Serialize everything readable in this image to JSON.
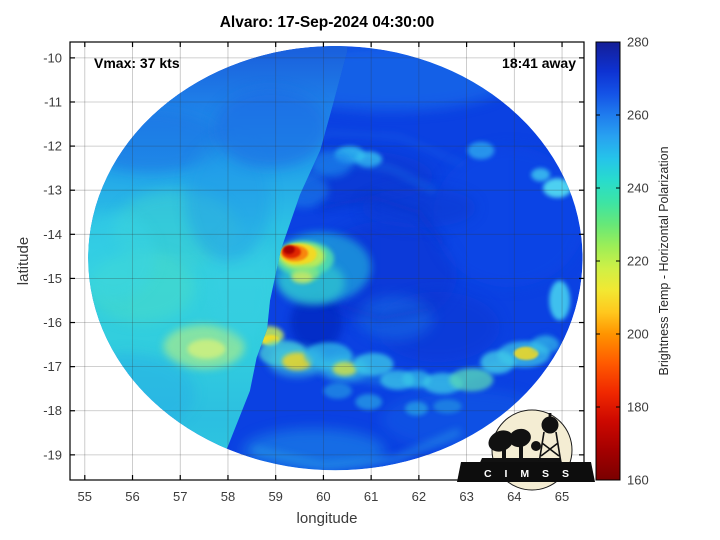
{
  "chart_data": {
    "type": "heatmap",
    "title": "Alvaro: 17-Sep-2024 04:30:00",
    "xlabel": "longitude",
    "ylabel": "latitude",
    "xlim": [
      54.69,
      65.46
    ],
    "ylim": [
      -19.57,
      -9.64
    ],
    "xticks": [
      55,
      56,
      57,
      58,
      59,
      60,
      61,
      62,
      63,
      64,
      65
    ],
    "yticks": [
      -10,
      -11,
      -12,
      -13,
      -14,
      -15,
      -16,
      -17,
      -18,
      -19
    ],
    "grid": true,
    "annotations": [
      {
        "text": "Vmax: 37 kts",
        "position": "top-left"
      },
      {
        "text": "18:41 away",
        "position": "top-right"
      }
    ],
    "colorbar": {
      "label": "Brightness Temp - Horizontal Polarization",
      "range": [
        160,
        280
      ],
      "ticks": [
        160,
        180,
        200,
        220,
        240,
        260,
        280
      ],
      "colormap": "jet-reversed",
      "stops": [
        {
          "value": 160,
          "color": "#7A0000"
        },
        {
          "value": 168,
          "color": "#A30000"
        },
        {
          "value": 176,
          "color": "#CC0800"
        },
        {
          "value": 184,
          "color": "#F02800"
        },
        {
          "value": 192,
          "color": "#FF5A00"
        },
        {
          "value": 200,
          "color": "#FF9400"
        },
        {
          "value": 206,
          "color": "#FFC81E"
        },
        {
          "value": 212,
          "color": "#F2E832"
        },
        {
          "value": 218,
          "color": "#CFF046"
        },
        {
          "value": 224,
          "color": "#9DEE57"
        },
        {
          "value": 230,
          "color": "#67E878"
        },
        {
          "value": 236,
          "color": "#3DE4A4"
        },
        {
          "value": 242,
          "color": "#28DCCC"
        },
        {
          "value": 248,
          "color": "#25C4EA"
        },
        {
          "value": 254,
          "color": "#28A2F0"
        },
        {
          "value": 260,
          "color": "#1F7CEE"
        },
        {
          "value": 266,
          "color": "#1452E6"
        },
        {
          "value": 272,
          "color": "#0E32D2"
        },
        {
          "value": 280,
          "color": "#141E96"
        }
      ]
    },
    "swath": {
      "center_lon": 60.25,
      "center_lat": -14.54,
      "radius_lon_deg": 5.18,
      "radius_lat_deg": 4.81,
      "outside_color": "#FFFFFF",
      "right_pass_base_color": "#0B41E2",
      "seam_lonlat": [
        [
          60.5,
          -9.85
        ],
        [
          60.2,
          -11.05
        ],
        [
          59.93,
          -12.1
        ],
        [
          59.51,
          -13.1
        ],
        [
          59.11,
          -14.35
        ],
        [
          58.88,
          -15.5
        ],
        [
          58.82,
          -16.15
        ],
        [
          58.6,
          -16.8
        ],
        [
          58.46,
          -17.55
        ],
        [
          58.0,
          -18.8
        ],
        [
          57.75,
          -19.4
        ]
      ],
      "left_pass_gradient": [
        {
          "offset": 0.0,
          "color": "#1A5EDC"
        },
        {
          "offset": 0.13,
          "color": "#1E7EE8"
        },
        {
          "offset": 0.28,
          "color": "#22A2EA"
        },
        {
          "offset": 0.42,
          "color": "#2CC0E4"
        },
        {
          "offset": 0.55,
          "color": "#34D0DF"
        },
        {
          "offset": 0.72,
          "color": "#31CDDE"
        },
        {
          "offset": 0.88,
          "color": "#2CBFE1"
        },
        {
          "offset": 1.0,
          "color": "#2EC8DF"
        }
      ],
      "left_pass_patches": [
        {
          "lon": 56.9,
          "lat": -13.9,
          "rx": 1.3,
          "ry": 0.9,
          "color": "#3ED2D2",
          "opacity": 0.55,
          "blur": "b6"
        },
        {
          "lon": 56.2,
          "lat": -15.2,
          "rx": 1.1,
          "ry": 0.8,
          "color": "#4ADCC6",
          "opacity": 0.5,
          "blur": "b6"
        },
        {
          "lon": 57.5,
          "lat": -16.55,
          "rx": 0.85,
          "ry": 0.5,
          "color": "#9AE896",
          "opacity": 0.8,
          "blur": "b4"
        },
        {
          "lon": 57.55,
          "lat": -16.6,
          "rx": 0.4,
          "ry": 0.22,
          "color": "#CFF07E",
          "opacity": 0.85,
          "blur": "b2"
        },
        {
          "lon": 55.6,
          "lat": -14.5,
          "rx": 0.9,
          "ry": 1.0,
          "color": "#38D4E6",
          "opacity": 0.45,
          "blur": "b6"
        },
        {
          "lon": 56.4,
          "lat": -11.9,
          "rx": 1.5,
          "ry": 0.7,
          "color": "#1B6FE4",
          "opacity": 0.55,
          "blur": "b6"
        },
        {
          "lon": 58.3,
          "lat": -15.1,
          "rx": 0.7,
          "ry": 1.3,
          "color": "#38CEE4",
          "opacity": 0.4,
          "blur": "b6"
        },
        {
          "lon": 55.9,
          "lat": -17.6,
          "rx": 1.4,
          "ry": 0.9,
          "color": "#27AEE6",
          "opacity": 0.5,
          "blur": "b6"
        },
        {
          "lon": 58.0,
          "lat": -13.2,
          "rx": 0.9,
          "ry": 1.4,
          "color": "#2398E8",
          "opacity": 0.45,
          "blur": "b6"
        },
        {
          "lon": 58.9,
          "lat": -11.6,
          "rx": 1.2,
          "ry": 0.9,
          "color": "#1A6AE4",
          "opacity": 0.6,
          "blur": "b6"
        }
      ],
      "right_pass_patches": [
        {
          "lon": 61.4,
          "lat": -10.45,
          "rx": 2.6,
          "ry": 0.75,
          "color": "#1E74EC",
          "opacity": 0.6,
          "blur": "b6"
        },
        {
          "lon": 61.3,
          "lat": -14.9,
          "rx": 1.5,
          "ry": 1.2,
          "color": "#0834D2",
          "opacity": 0.55,
          "blur": "b6"
        },
        {
          "lon": 60.7,
          "lat": -12.7,
          "rx": 1.6,
          "ry": 0.6,
          "color": "#0835CC",
          "opacity": 0.5,
          "blur": "b6"
        },
        {
          "lon": 62.4,
          "lat": -16.1,
          "rx": 1.3,
          "ry": 0.8,
          "color": "#0834D0",
          "opacity": 0.45,
          "blur": "b6"
        },
        {
          "lon": 59.85,
          "lat": -16.0,
          "rx": 0.55,
          "ry": 0.65,
          "color": "#0527BE",
          "opacity": 0.7,
          "blur": "b4"
        },
        {
          "lon": 63.9,
          "lat": -13.6,
          "rx": 1.6,
          "ry": 1.6,
          "color": "#0D4AE8",
          "opacity": 0.5,
          "blur": "b6"
        },
        {
          "lon": 64.9,
          "lat": -12.95,
          "rx": 0.3,
          "ry": 0.22,
          "color": "#55E0F2",
          "opacity": 0.9,
          "blur": "b2"
        },
        {
          "lon": 64.55,
          "lat": -12.65,
          "rx": 0.2,
          "ry": 0.15,
          "color": "#40CCF0",
          "opacity": 0.8,
          "blur": "b2"
        },
        {
          "lon": 64.95,
          "lat": -15.5,
          "rx": 0.22,
          "ry": 0.45,
          "color": "#48D8F0",
          "opacity": 0.85,
          "blur": "b2"
        },
        {
          "lon": 63.3,
          "lat": -12.1,
          "rx": 0.28,
          "ry": 0.2,
          "color": "#2FA8EE",
          "opacity": 0.8,
          "blur": "b2"
        },
        {
          "lon": 60.55,
          "lat": -12.2,
          "rx": 0.32,
          "ry": 0.2,
          "color": "#35BFF0",
          "opacity": 0.85,
          "blur": "b2"
        },
        {
          "lon": 60.95,
          "lat": -12.3,
          "rx": 0.28,
          "ry": 0.18,
          "color": "#38C4F0",
          "opacity": 0.8,
          "blur": "b2"
        },
        {
          "lon": 60.15,
          "lat": -12.4,
          "rx": 0.45,
          "ry": 0.3,
          "color": "#1E86EC",
          "opacity": 0.7,
          "blur": "b4"
        },
        {
          "lon": 59.6,
          "lat": -13.0,
          "rx": 0.5,
          "ry": 0.4,
          "color": "#1C80EA",
          "opacity": 0.6,
          "blur": "b4"
        },
        {
          "lon": 62.0,
          "lat": -13.4,
          "rx": 1.2,
          "ry": 0.45,
          "color": "#0A38CE",
          "opacity": 0.5,
          "blur": "b6"
        },
        {
          "lon": 61.5,
          "lat": -15.9,
          "rx": 0.8,
          "ry": 0.5,
          "color": "#1C7CEA",
          "opacity": 0.45,
          "blur": "b6"
        },
        {
          "lon": 63.0,
          "lat": -18.2,
          "rx": 1.8,
          "ry": 0.7,
          "color": "#1668E8",
          "opacity": 0.4,
          "blur": "b6"
        },
        {
          "lon": 59.8,
          "lat": -18.9,
          "rx": 1.5,
          "ry": 0.5,
          "color": "#2098E8",
          "opacity": 0.5,
          "blur": "b6"
        }
      ],
      "arcs": [
        {
          "points": [
            [
              58.5,
              -16.2
            ],
            [
              59.4,
              -16.9
            ],
            [
              60.4,
              -17.15
            ],
            [
              61.5,
              -17.35
            ],
            [
              62.6,
              -17.4
            ],
            [
              63.6,
              -17.0
            ],
            [
              64.7,
              -16.4
            ]
          ],
          "color": "#2497E6",
          "width": 10,
          "opacity": 0.45,
          "blur": "b4"
        },
        {
          "points": [
            [
              59.3,
              -12.9
            ],
            [
              60.3,
              -12.35
            ],
            [
              61.4,
              -12.5
            ],
            [
              62.3,
              -13.0
            ]
          ],
          "color": "#1C78E8",
          "width": 5,
          "opacity": 0.5,
          "blur": "b4"
        },
        {
          "points": [
            [
              58.9,
              -12.3
            ],
            [
              60.1,
              -11.7
            ],
            [
              61.6,
              -11.8
            ],
            [
              62.9,
              -12.4
            ]
          ],
          "color": "#1A70E8",
          "width": 4,
          "opacity": 0.4,
          "blur": "b4"
        },
        {
          "points": [
            [
              60.0,
              -13.4
            ],
            [
              61.0,
              -13.15
            ],
            [
              62.0,
              -13.5
            ],
            [
              62.5,
              -14.2
            ]
          ],
          "color": "#0830C8",
          "width": 6,
          "opacity": 0.5,
          "blur": "b4"
        },
        {
          "points": [
            [
              60.3,
              -15.6
            ],
            [
              61.2,
              -15.9
            ],
            [
              62.2,
              -15.7
            ]
          ],
          "color": "#0830C8",
          "width": 6,
          "opacity": 0.4,
          "blur": "b4"
        },
        {
          "points": [
            [
              58.6,
              -18.9
            ],
            [
              60.0,
              -19.25
            ],
            [
              61.5,
              -19.1
            ],
            [
              62.8,
              -18.5
            ]
          ],
          "color": "#2DA6E8",
          "width": 8,
          "opacity": 0.45,
          "blur": "b4"
        }
      ],
      "hotspot_blobs": [
        {
          "lon": 59.95,
          "lat": -14.75,
          "rx": 1.05,
          "ry": 0.8,
          "color": "#20B4DC",
          "opacity": 0.65,
          "blur": "b4"
        },
        {
          "lon": 59.75,
          "lat": -15.1,
          "rx": 0.7,
          "ry": 0.5,
          "color": "#35D4CC",
          "opacity": 0.6,
          "blur": "b4"
        },
        {
          "lon": 59.6,
          "lat": -14.55,
          "rx": 0.62,
          "ry": 0.4,
          "color": "#55E2A8",
          "opacity": 0.85,
          "blur": "b2"
        },
        {
          "lon": 59.55,
          "lat": -14.5,
          "rx": 0.48,
          "ry": 0.3,
          "color": "#C6EC50",
          "opacity": 0.9,
          "blur": "b2"
        },
        {
          "lon": 59.48,
          "lat": -14.45,
          "rx": 0.38,
          "ry": 0.24,
          "color": "#F5D822",
          "opacity": 0.95,
          "blur": "b1"
        },
        {
          "lon": 59.4,
          "lat": -14.43,
          "rx": 0.28,
          "ry": 0.18,
          "color": "#F8860A",
          "opacity": 1,
          "blur": "b1"
        },
        {
          "lon": 59.33,
          "lat": -14.4,
          "rx": 0.2,
          "ry": 0.14,
          "color": "#E02800",
          "opacity": 1,
          "blur": "b1"
        },
        {
          "lon": 59.28,
          "lat": -14.35,
          "rx": 0.12,
          "ry": 0.1,
          "color": "#A80500",
          "opacity": 1,
          "blur": "b1"
        },
        {
          "lon": 59.62,
          "lat": -14.9,
          "rx": 0.3,
          "ry": 0.18,
          "color": "#8CE87C",
          "opacity": 0.7,
          "blur": "b2"
        },
        {
          "lon": 59.55,
          "lat": -14.98,
          "rx": 0.22,
          "ry": 0.13,
          "color": "#D8E85C",
          "opacity": 0.7,
          "blur": "b2"
        }
      ],
      "rainband_blobs": [
        {
          "lon": 58.85,
          "lat": -16.3,
          "rx": 0.32,
          "ry": 0.22,
          "color": "#BCE460",
          "opacity": 0.9,
          "blur": "b2"
        },
        {
          "lon": 58.9,
          "lat": -16.4,
          "rx": 0.18,
          "ry": 0.12,
          "color": "#F2DE25",
          "opacity": 0.95,
          "blur": "b1"
        },
        {
          "lon": 59.15,
          "lat": -16.7,
          "rx": 0.5,
          "ry": 0.3,
          "color": "#48D2D8",
          "opacity": 0.75,
          "blur": "b2"
        },
        {
          "lon": 59.45,
          "lat": -16.88,
          "rx": 0.6,
          "ry": 0.35,
          "color": "#42CCDE",
          "opacity": 0.6,
          "blur": "b4"
        },
        {
          "lon": 59.45,
          "lat": -16.88,
          "rx": 0.32,
          "ry": 0.2,
          "color": "#E4D42E",
          "opacity": 0.9,
          "blur": "b2"
        },
        {
          "lon": 60.1,
          "lat": -16.75,
          "rx": 0.5,
          "ry": 0.3,
          "color": "#30BEE8",
          "opacity": 0.75,
          "blur": "b2"
        },
        {
          "lon": 60.45,
          "lat": -17.05,
          "rx": 0.5,
          "ry": 0.28,
          "color": "#3CCCE4",
          "opacity": 0.6,
          "blur": "b4"
        },
        {
          "lon": 60.45,
          "lat": -17.05,
          "rx": 0.26,
          "ry": 0.16,
          "color": "#CCE04A",
          "opacity": 0.85,
          "blur": "b2"
        },
        {
          "lon": 61.05,
          "lat": -16.95,
          "rx": 0.42,
          "ry": 0.26,
          "color": "#3CCCE8",
          "opacity": 0.75,
          "blur": "b2"
        },
        {
          "lon": 61.55,
          "lat": -17.3,
          "rx": 0.36,
          "ry": 0.22,
          "color": "#3CCCE8",
          "opacity": 0.7,
          "blur": "b2"
        },
        {
          "lon": 61.95,
          "lat": -17.28,
          "rx": 0.3,
          "ry": 0.2,
          "color": "#38C8E8",
          "opacity": 0.65,
          "blur": "b2"
        },
        {
          "lon": 62.5,
          "lat": -17.38,
          "rx": 0.42,
          "ry": 0.24,
          "color": "#3CCCE8",
          "opacity": 0.7,
          "blur": "b2"
        },
        {
          "lon": 63.1,
          "lat": -17.3,
          "rx": 0.46,
          "ry": 0.26,
          "color": "#58D8B8",
          "opacity": 0.75,
          "blur": "b2"
        },
        {
          "lon": 63.65,
          "lat": -16.9,
          "rx": 0.36,
          "ry": 0.26,
          "color": "#44D0E8",
          "opacity": 0.75,
          "blur": "b2"
        },
        {
          "lon": 64.2,
          "lat": -16.72,
          "rx": 0.55,
          "ry": 0.3,
          "color": "#3CC8E8",
          "opacity": 0.7,
          "blur": "b2"
        },
        {
          "lon": 64.25,
          "lat": -16.7,
          "rx": 0.26,
          "ry": 0.15,
          "color": "#EED827",
          "opacity": 0.9,
          "blur": "b1"
        },
        {
          "lon": 64.65,
          "lat": -16.5,
          "rx": 0.3,
          "ry": 0.2,
          "color": "#38C4E8",
          "opacity": 0.6,
          "blur": "b2"
        },
        {
          "lon": 60.95,
          "lat": -17.8,
          "rx": 0.28,
          "ry": 0.18,
          "color": "#2FB6E6",
          "opacity": 0.6,
          "blur": "b2"
        },
        {
          "lon": 61.95,
          "lat": -17.95,
          "rx": 0.24,
          "ry": 0.16,
          "color": "#2FB6E6",
          "opacity": 0.6,
          "blur": "b2"
        },
        {
          "lon": 60.3,
          "lat": -17.55,
          "rx": 0.3,
          "ry": 0.18,
          "color": "#2CAEE4",
          "opacity": 0.55,
          "blur": "b2"
        },
        {
          "lon": 62.6,
          "lat": -17.9,
          "rx": 0.3,
          "ry": 0.16,
          "color": "#2AAAE2",
          "opacity": 0.5,
          "blur": "b2"
        }
      ]
    }
  },
  "logo": {
    "text": "C I M S S"
  },
  "axis_style": {
    "tick_label_color": "#3C3C3C",
    "grid_color": "#333333",
    "border_color": "#000000",
    "background": "#FFFFFF"
  }
}
